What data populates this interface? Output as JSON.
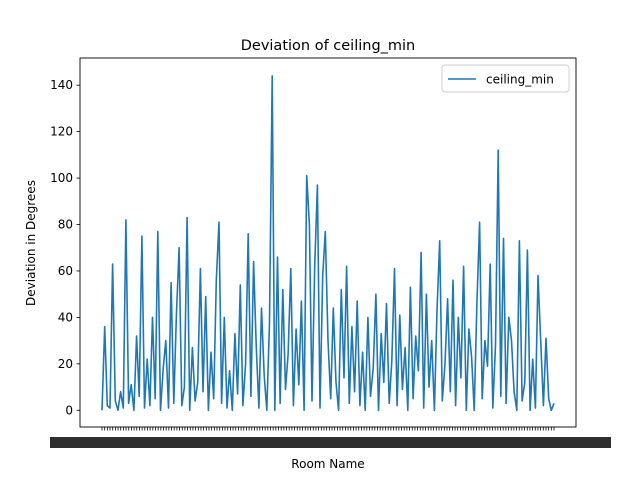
{
  "chart_data": {
    "type": "line",
    "title": "Deviation of ceiling_min",
    "xlabel": "Room Name",
    "ylabel": "Deviation in Degrees",
    "ylim": [
      -7.2,
      151.7
    ],
    "yticks": [
      0,
      20,
      40,
      60,
      80,
      100,
      120,
      140
    ],
    "grid": false,
    "legend_placement": "top-right",
    "x_tick_labels_note_count": 0,
    "series": [
      {
        "name": "ceiling_min",
        "color": "#1f77b4",
        "values": [
          0,
          36,
          2,
          1,
          63,
          4,
          0,
          8,
          1,
          82,
          3,
          11,
          0,
          32,
          6,
          75,
          1,
          22,
          2,
          40,
          5,
          77,
          0,
          18,
          30,
          1,
          55,
          3,
          41,
          70,
          2,
          10,
          83,
          0,
          27,
          4,
          12,
          61,
          8,
          49,
          0,
          25,
          5,
          56,
          81,
          3,
          40,
          1,
          17,
          0,
          33,
          7,
          54,
          2,
          20,
          76,
          6,
          64,
          28,
          1,
          44,
          15,
          0,
          38,
          144,
          0,
          66,
          3,
          52,
          9,
          24,
          61,
          2,
          35,
          11,
          47,
          0,
          101,
          80,
          4,
          62,
          97,
          1,
          58,
          77,
          30,
          5,
          44,
          12,
          0,
          52,
          14,
          62,
          3,
          36,
          8,
          47,
          2,
          25,
          0,
          40,
          6,
          18,
          50,
          0,
          33,
          12,
          46,
          3,
          21,
          61,
          2,
          41,
          9,
          27,
          0,
          53,
          5,
          32,
          17,
          68,
          1,
          50,
          10,
          30,
          0,
          43,
          73,
          4,
          20,
          48,
          8,
          56,
          2,
          40,
          14,
          62,
          0,
          35,
          23,
          0,
          46,
          81,
          5,
          30,
          19,
          63,
          1,
          28,
          112,
          6,
          74,
          3,
          40,
          30,
          8,
          0,
          73,
          4,
          12,
          69,
          0,
          22,
          1,
          58,
          30,
          2,
          31,
          5,
          0,
          3
        ]
      }
    ]
  }
}
